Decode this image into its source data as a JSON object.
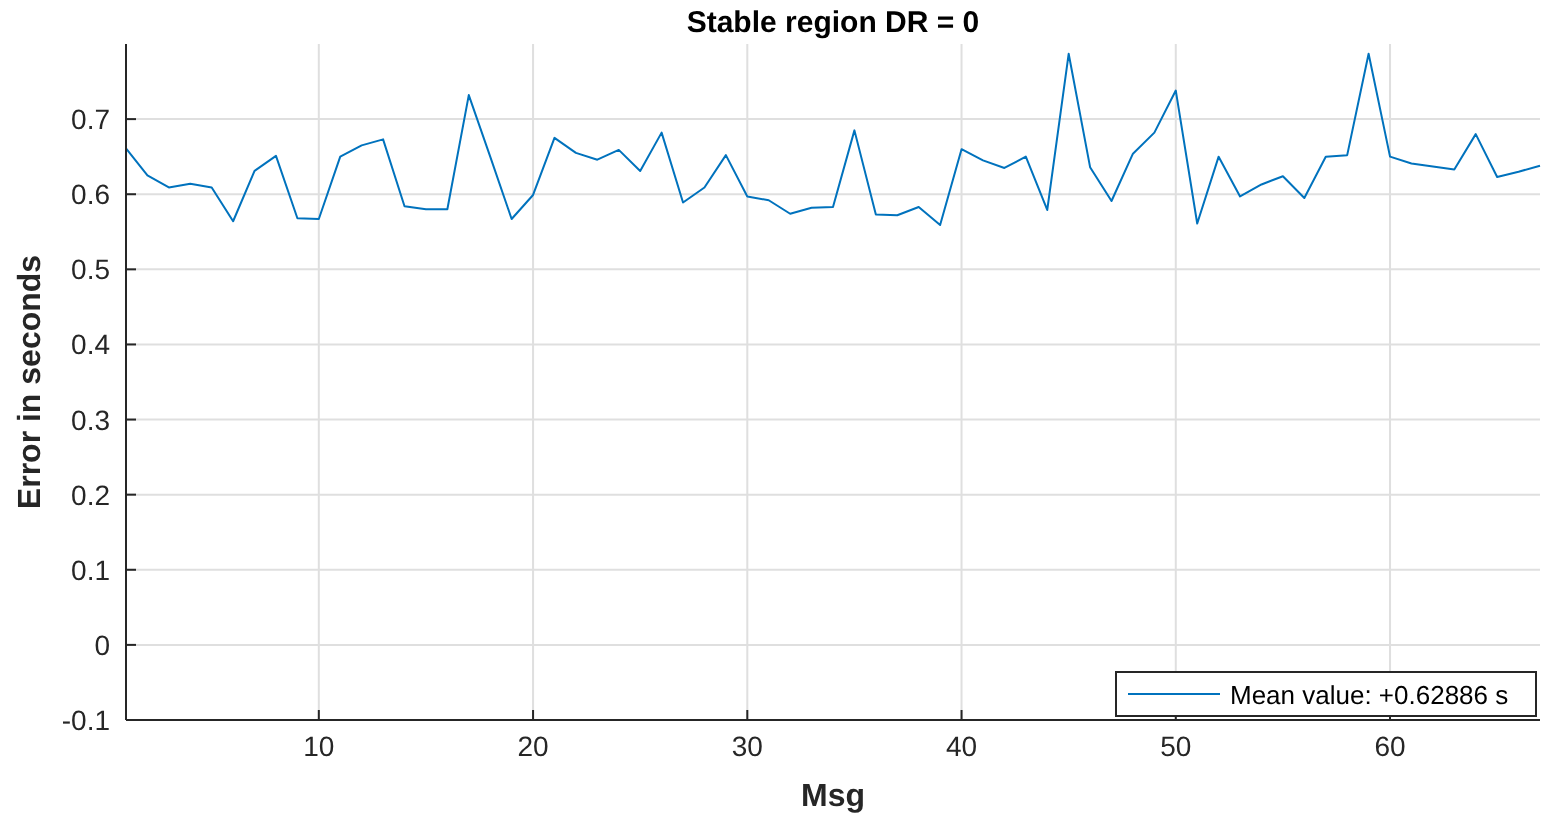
{
  "chart_data": {
    "type": "line",
    "title": "Stable region DR = 0",
    "xlabel": "Msg",
    "ylabel": "Error in seconds",
    "x": [
      1,
      2,
      3,
      4,
      5,
      6,
      7,
      8,
      9,
      10,
      11,
      12,
      13,
      14,
      15,
      16,
      17,
      18,
      19,
      20,
      21,
      22,
      23,
      24,
      25,
      26,
      27,
      28,
      29,
      30,
      31,
      32,
      33,
      34,
      35,
      36,
      37,
      38,
      39,
      40,
      41,
      42,
      43,
      44,
      45,
      46,
      47,
      48,
      49,
      50,
      51,
      52,
      53,
      54,
      55,
      56,
      57,
      58,
      59,
      60,
      61,
      62,
      63,
      64,
      65,
      66,
      67
    ],
    "series": [
      {
        "name": "Mean value: +0.62886 s",
        "color": "#0072bd",
        "values": [
          0.661,
          0.625,
          0.609,
          0.614,
          0.609,
          0.564,
          0.631,
          0.651,
          0.568,
          0.567,
          0.65,
          0.665,
          0.673,
          0.584,
          0.58,
          0.58,
          0.732,
          0.65,
          0.567,
          0.599,
          0.675,
          0.655,
          0.646,
          0.659,
          0.631,
          0.682,
          0.589,
          0.609,
          0.652,
          0.597,
          0.592,
          0.574,
          0.582,
          0.583,
          0.685,
          0.573,
          0.572,
          0.583,
          0.559,
          0.66,
          0.645,
          0.635,
          0.65,
          0.579,
          0.787,
          0.636,
          0.591,
          0.654,
          0.682,
          0.738,
          0.561,
          0.65,
          0.597,
          0.613,
          0.624,
          0.595,
          0.65,
          0.652,
          0.787,
          0.65,
          0.641,
          0.637,
          0.633,
          0.68,
          0.623,
          0.63,
          0.638
        ]
      }
    ],
    "xlim": [
      1,
      67
    ],
    "ylim": [
      -0.1,
      0.8
    ],
    "xticks": [
      10,
      20,
      30,
      40,
      50,
      60
    ],
    "yticks": [
      -0.1,
      0,
      0.1,
      0.2,
      0.3,
      0.4,
      0.5,
      0.6,
      0.7
    ],
    "grid": true,
    "legend": "bottom right",
    "marker": "none",
    "line_style": "solid"
  }
}
